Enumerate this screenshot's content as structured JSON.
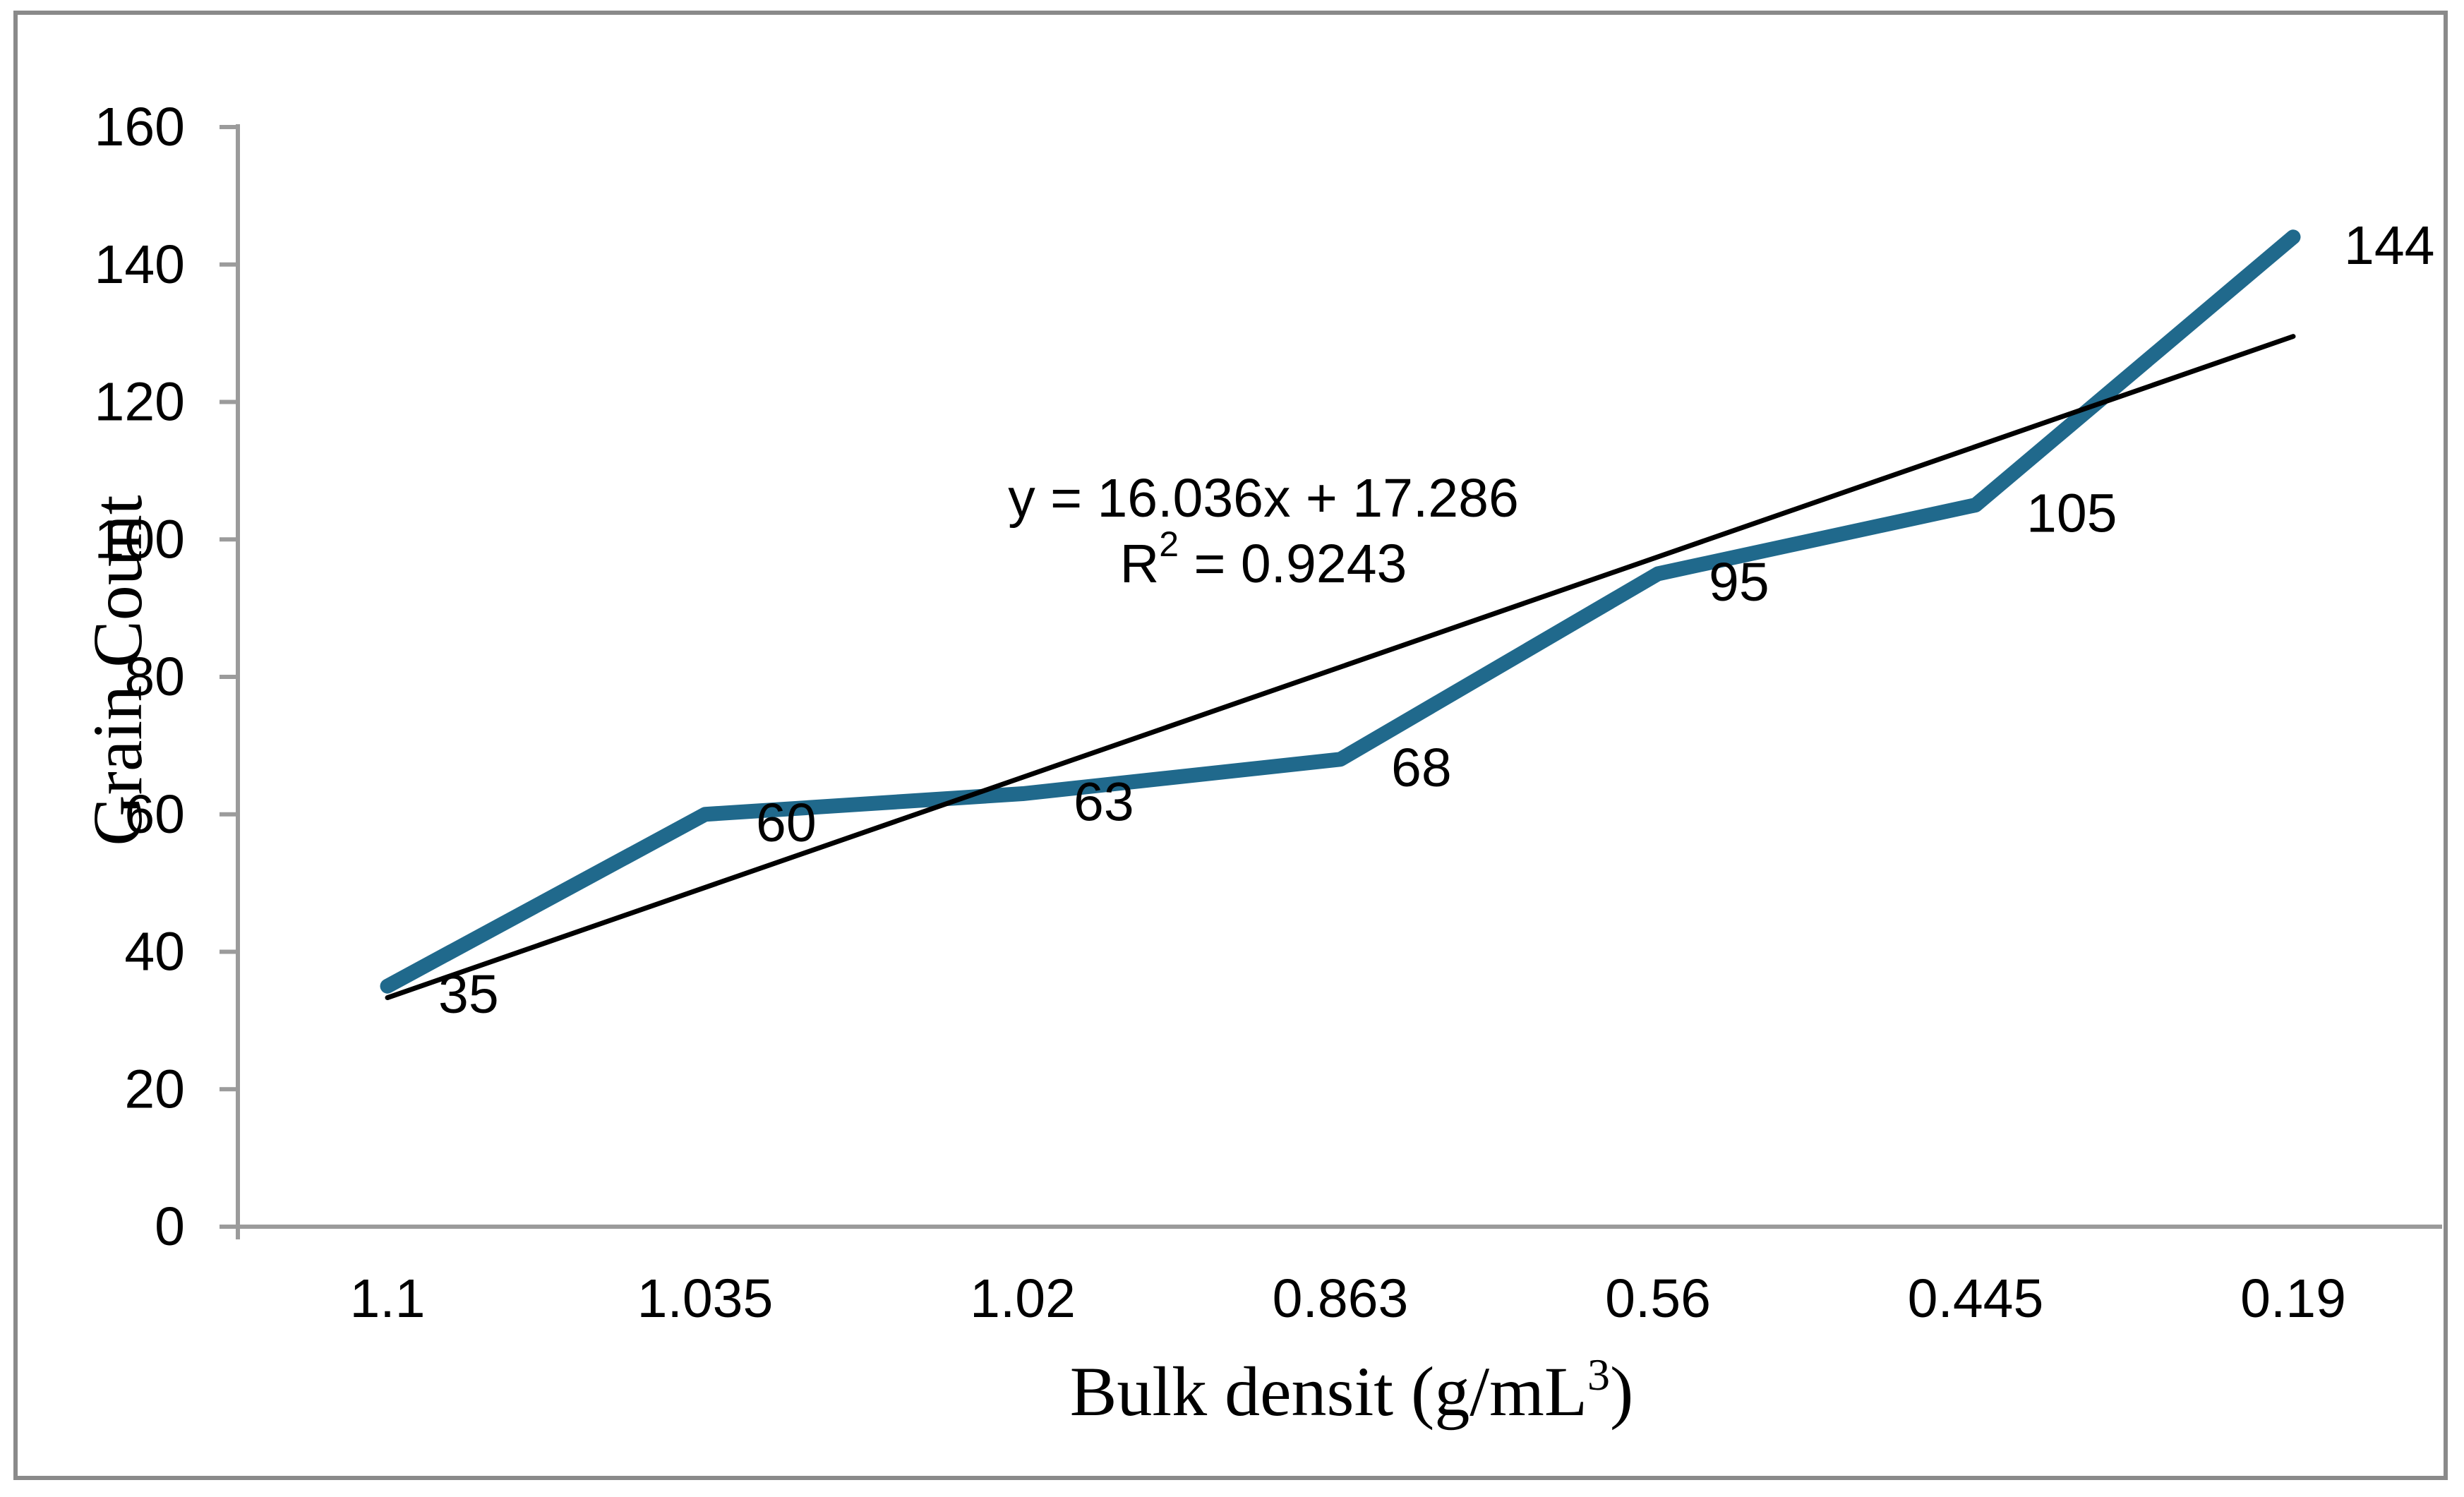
{
  "figure": {
    "border_color": "#8A8A8A",
    "background_color": "#FFFFFF"
  },
  "chart_data": {
    "type": "line",
    "title": "",
    "categories": [
      "1.1",
      "1.035",
      "1.02",
      "0.863",
      "0.56",
      "0.445",
      "0.19"
    ],
    "series": [
      {
        "name": "Grain Count",
        "values": [
          35,
          60,
          63,
          68,
          95,
          105,
          144
        ],
        "color": "#20698C"
      }
    ],
    "data_labels_position": "right",
    "trendline": {
      "type": "linear",
      "slope": 16.036,
      "intercept": 17.286,
      "color": "#000000",
      "equation_line1": "y = 16.036x + 17.286",
      "r2_base": "R",
      "r2_sup": "2",
      "r2_rest": " = 0.9243"
    },
    "xlabel_base": "Bulk densit (g/mL",
    "xlabel_sup": "3",
    "xlabel_end": ")",
    "ylabel": "Grain Count",
    "y_ticks": [
      0,
      20,
      40,
      60,
      80,
      100,
      120,
      140,
      160
    ],
    "ylim": [
      0,
      160
    ],
    "grid": "off",
    "legend": "none",
    "axis_color": "#9B9B9B"
  }
}
